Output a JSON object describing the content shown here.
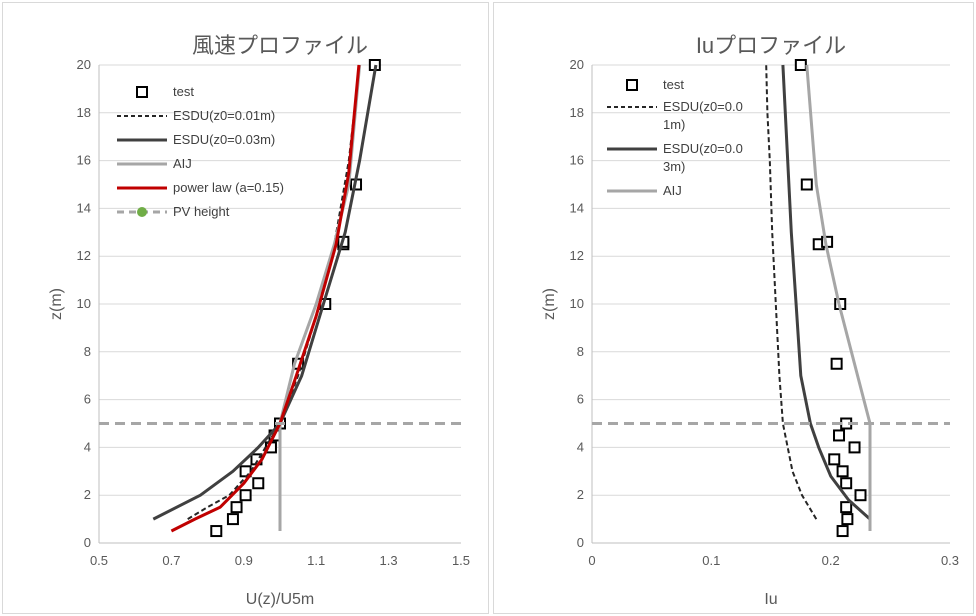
{
  "chart_data": [
    {
      "type": "line",
      "title": "風速プロファイル",
      "xlabel": "U(z)/U5m",
      "ylabel": "z(m)",
      "xlim": [
        0.5,
        1.5
      ],
      "ylim": [
        0,
        20
      ],
      "x_ticks": [
        "0.5",
        "0.7",
        "0.9",
        "1.1",
        "1.3",
        "1.5"
      ],
      "y_ticks": [
        "0",
        "2",
        "4",
        "6",
        "8",
        "10",
        "12",
        "14",
        "16",
        "18",
        "20"
      ],
      "grid": "horizontal",
      "legend_position": "top-left",
      "series": [
        {
          "name": "test",
          "style": "marker",
          "color": "#000000",
          "x": [
            0.824,
            0.87,
            0.88,
            0.905,
            0.94,
            0.905,
            0.935,
            0.975,
            0.985,
            1.0,
            1.05,
            1.125,
            1.175,
            1.175,
            1.21,
            1.262
          ],
          "y": [
            0.5,
            1.0,
            1.5,
            2.0,
            2.5,
            3.0,
            3.5,
            4.0,
            4.5,
            5.0,
            7.5,
            10.0,
            12.5,
            12.6,
            15.0,
            20.0
          ]
        },
        {
          "name": "ESDU(z0=0.01m)",
          "style": "dashed",
          "color": "#262626",
          "x": [
            0.745,
            0.8,
            0.86,
            0.92,
            0.96,
            1.0,
            1.05,
            1.1,
            1.15,
            1.19,
            1.22
          ],
          "y": [
            1.0,
            1.5,
            2.0,
            3.0,
            4.0,
            5.0,
            7.0,
            9.5,
            12.5,
            16.0,
            20.0
          ]
        },
        {
          "name": "ESDU(z0=0.03m)",
          "style": "solid",
          "color": "#404040",
          "x": [
            0.65,
            0.78,
            0.87,
            0.94,
            1.0,
            1.06,
            1.12,
            1.18,
            1.22,
            1.265
          ],
          "y": [
            1.0,
            2.0,
            3.0,
            4.0,
            5.0,
            7.0,
            10.0,
            13.0,
            16.0,
            20.0
          ]
        },
        {
          "name": "AIJ",
          "style": "solid",
          "color": "#a6a6a6",
          "x": [
            1.0,
            1.0,
            1.04,
            1.1,
            1.15,
            1.19,
            1.22
          ],
          "y": [
            0.5,
            5.0,
            7.5,
            10.0,
            12.5,
            15.0,
            20.0
          ]
        },
        {
          "name": "power law (a=0.15)",
          "style": "solid",
          "color": "#c00000",
          "x": [
            0.7,
            0.765,
            0.835,
            0.9,
            0.95,
            1.0,
            1.045,
            1.1,
            1.155,
            1.19,
            1.218
          ],
          "y": [
            0.5,
            1.0,
            1.5,
            2.5,
            3.5,
            5.0,
            7.0,
            9.5,
            12.5,
            15.5,
            20.0
          ]
        },
        {
          "name": "PV height",
          "style": "dashed-ref",
          "color": "#a6a6a6",
          "marker_color": "#70ad47",
          "x": [
            0.5,
            1.5
          ],
          "y": [
            5.0,
            5.0
          ]
        }
      ]
    },
    {
      "type": "line",
      "title": "Iuプロファイル",
      "xlabel": "Iu",
      "ylabel": "z(m)",
      "xlim": [
        0,
        0.3
      ],
      "ylim": [
        0,
        20
      ],
      "x_ticks": [
        "0",
        "0.1",
        "0.2",
        "0.3"
      ],
      "y_ticks": [
        "0",
        "2",
        "4",
        "6",
        "8",
        "10",
        "12",
        "14",
        "16",
        "18",
        "20"
      ],
      "grid": "horizontal",
      "legend_position": "top-left",
      "series": [
        {
          "name": "test",
          "style": "marker",
          "color": "#000000",
          "x": [
            0.21,
            0.214,
            0.213,
            0.225,
            0.213,
            0.21,
            0.203,
            0.22,
            0.207,
            0.213,
            0.205,
            0.208,
            0.19,
            0.197,
            0.18,
            0.175
          ],
          "y": [
            0.5,
            1.0,
            1.5,
            2.0,
            2.5,
            3.0,
            3.5,
            4.0,
            4.5,
            5.0,
            7.5,
            10.0,
            12.5,
            12.6,
            15.0,
            20.0
          ]
        },
        {
          "name": "ESDU(z0=0.0\n1m)",
          "style": "dashed",
          "color": "#262626",
          "x": [
            0.188,
            0.176,
            0.168,
            0.164,
            0.16,
            0.157,
            0.154,
            0.151,
            0.149,
            0.147,
            0.146
          ],
          "y": [
            1.0,
            2.0,
            3.0,
            4.0,
            5.0,
            7.0,
            10.0,
            13.0,
            16.0,
            18.0,
            20.0
          ]
        },
        {
          "name": "ESDU(z0=0.0\n3m)",
          "style": "solid",
          "color": "#404040",
          "x": [
            0.233,
            0.215,
            0.2,
            0.19,
            0.183,
            0.175,
            0.171,
            0.167,
            0.164,
            0.162,
            0.16
          ],
          "y": [
            1.0,
            1.8,
            2.8,
            4.0,
            5.0,
            7.0,
            10.0,
            13.0,
            16.0,
            18.0,
            20.0
          ]
        },
        {
          "name": "AIJ",
          "style": "solid",
          "color": "#a6a6a6",
          "x": [
            0.233,
            0.233,
            0.22,
            0.207,
            0.196,
            0.188,
            0.18
          ],
          "y": [
            0.5,
            5.0,
            7.5,
            10.0,
            12.5,
            15.0,
            20.0
          ]
        },
        {
          "name": "",
          "style": "dashed-ref",
          "color": "#a6a6a6",
          "x": [
            0,
            0.3
          ],
          "y": [
            5.0,
            5.0
          ]
        }
      ]
    }
  ]
}
